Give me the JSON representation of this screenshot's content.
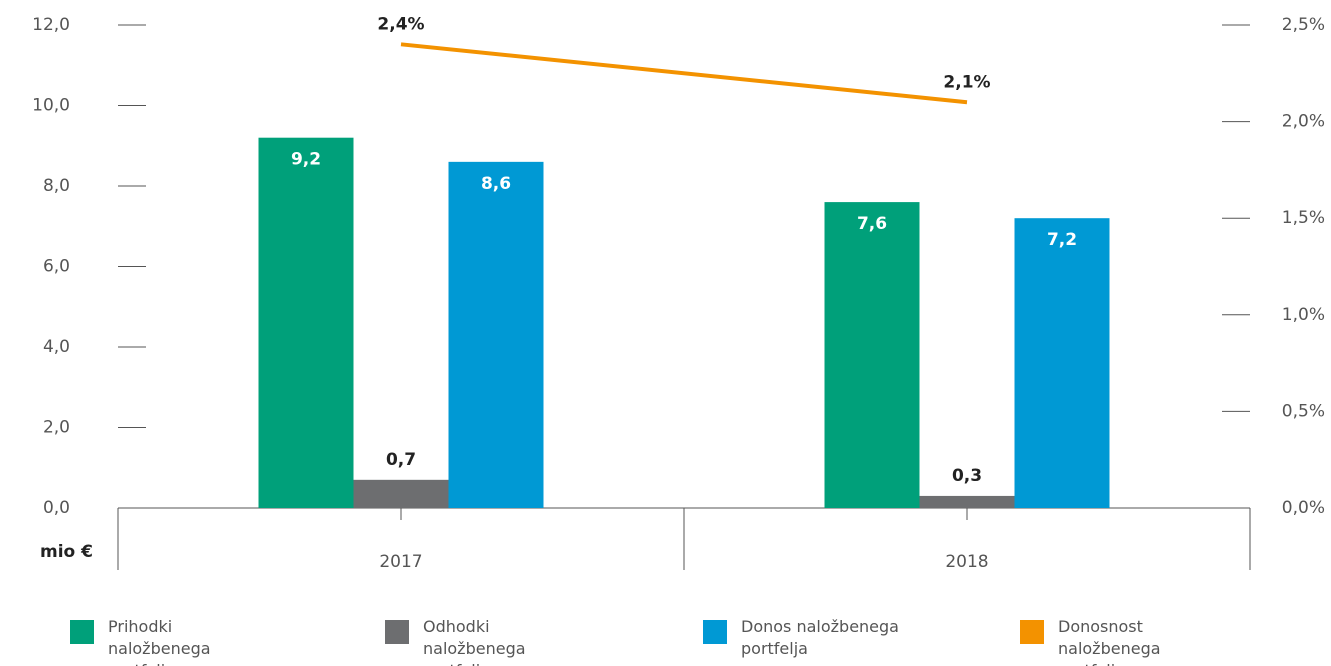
{
  "chart_data": {
    "type": "bar",
    "categories": [
      "2017",
      "2018"
    ],
    "y_label": "mio €",
    "ylim": [
      0,
      12
    ],
    "yticks": [
      {
        "value": 0,
        "label": "0,0"
      },
      {
        "value": 2,
        "label": "2,0"
      },
      {
        "value": 4,
        "label": "4,0"
      },
      {
        "value": 6,
        "label": "6,0"
      },
      {
        "value": 8,
        "label": "8,0"
      },
      {
        "value": 10,
        "label": "10,0"
      },
      {
        "value": 12,
        "label": "12,0"
      }
    ],
    "y2lim": [
      0,
      2.5
    ],
    "y2ticks": [
      {
        "value": 0,
        "label": "0,0%"
      },
      {
        "value": 0.5,
        "label": "0,5%"
      },
      {
        "value": 1,
        "label": "1,0%"
      },
      {
        "value": 1.5,
        "label": "1,5%"
      },
      {
        "value": 2,
        "label": "2,0%"
      },
      {
        "value": 2.5,
        "label": "2,5%"
      }
    ],
    "series": [
      {
        "name": "Prihodki naložbenega portfelja",
        "color": "#00a07a",
        "values": [
          9.2,
          7.6
        ],
        "value_labels": [
          "9,2",
          "7,6"
        ]
      },
      {
        "name": "Odhodki naložbenega portfelja",
        "color": "#6d6e70",
        "values": [
          0.7,
          0.3
        ],
        "value_labels": [
          "0,7",
          "0,3"
        ]
      },
      {
        "name": "Donos naložbenega portfelja",
        "color": "#0099d4",
        "values": [
          8.6,
          7.2
        ],
        "value_labels": [
          "8,6",
          "7,2"
        ]
      },
      {
        "name": "Donosnost naložbenega portfelja",
        "type": "line",
        "axis": "y2",
        "color": "#f39200",
        "values": [
          2.4,
          2.1
        ],
        "value_labels": [
          "2,4%",
          "2,1%"
        ]
      }
    ]
  }
}
